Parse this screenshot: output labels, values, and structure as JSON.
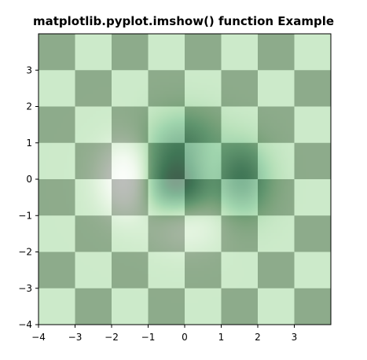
{
  "chart_data": {
    "type": "heatmap",
    "title": "matplotlib.pyplot.imshow() function Example",
    "xlabel": "",
    "ylabel": "",
    "xlim": [
      -4,
      4
    ],
    "ylim": [
      -4,
      4
    ],
    "xticks": [
      -4,
      -3,
      -2,
      -1,
      0,
      1,
      2,
      3
    ],
    "yticks": [
      -4,
      -3,
      -2,
      -1,
      0,
      1,
      2,
      3
    ],
    "xtick_labels": [
      "−4",
      "−3",
      "−2",
      "−1",
      "0",
      "1",
      "2",
      "3"
    ],
    "ytick_labels": [
      "−4",
      "−3",
      "−2",
      "−1",
      "0",
      "1",
      "2",
      "3"
    ],
    "layers": [
      {
        "name": "checkerboard",
        "kind": "checkerboard",
        "extent": [
          -4,
          4,
          -4,
          4
        ],
        "grid": [
          8,
          8
        ],
        "colormap": "gray",
        "values": [
          0,
          1
        ],
        "alpha": 0.5
      },
      {
        "name": "function",
        "kind": "function",
        "formula": "(1 - x/2 + x^5 + y^3) * exp(-(x^2 + y^2))",
        "extent": [
          -4,
          4,
          -4,
          4
        ],
        "colormap": "Greens",
        "alpha": 0.5
      }
    ],
    "colors": {
      "gray_dark": "#000000",
      "gray_light": "#ffffff",
      "greens_low": "#f7fcf5",
      "greens_high": "#00441b"
    }
  }
}
